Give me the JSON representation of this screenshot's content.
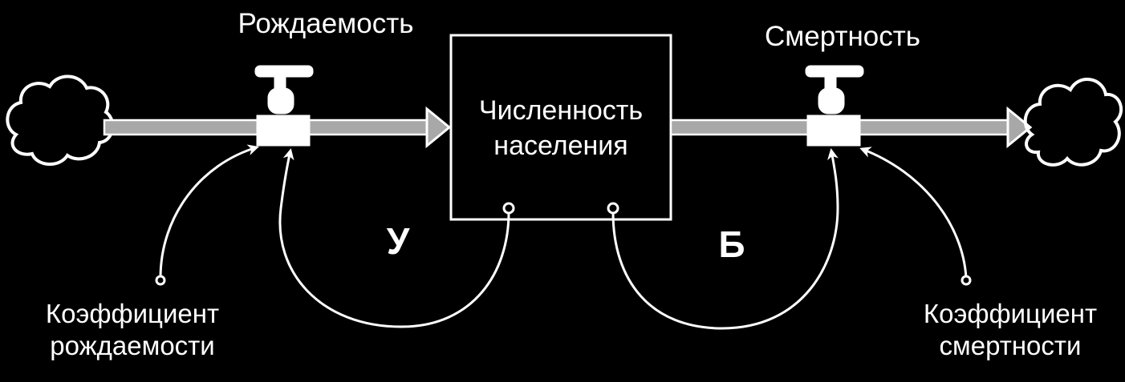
{
  "nodes": {
    "inflow_label": "Рождаемость",
    "outflow_label": "Смертность",
    "stock_line1": "Численность",
    "stock_line2": "населения",
    "birth_coef_line1": "Коэффициент",
    "birth_coef_line2": "рождаемости",
    "death_coef_line1": "Коэффициент",
    "death_coef_line2": "смертности"
  },
  "loops": {
    "reinforcing": "У",
    "balancing": "Б"
  },
  "colors": {
    "background": "#000000",
    "foreground": "#ffffff",
    "flow_fill": "#a8a8a8"
  },
  "icons": {
    "source": "cloud-icon",
    "sink": "cloud-icon",
    "valve": "faucet-valve-icon"
  }
}
